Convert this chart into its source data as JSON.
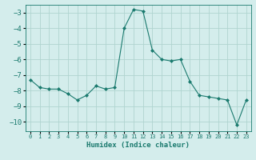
{
  "x": [
    0,
    1,
    2,
    3,
    4,
    5,
    6,
    7,
    8,
    9,
    10,
    11,
    12,
    13,
    14,
    15,
    16,
    17,
    18,
    19,
    20,
    21,
    22,
    23
  ],
  "y": [
    -7.3,
    -7.8,
    -7.9,
    -7.9,
    -8.2,
    -8.6,
    -8.3,
    -7.7,
    -7.9,
    -7.8,
    -4.0,
    -2.8,
    -2.9,
    -5.4,
    -6.0,
    -6.1,
    -6.0,
    -7.4,
    -8.3,
    -8.4,
    -8.5,
    -8.6,
    -10.2,
    -8.6
  ],
  "line_color": "#1a7a6e",
  "marker": "D",
  "marker_size": 2.0,
  "bg_color": "#d4edec",
  "grid_color": "#b0d4d0",
  "xlabel": "Humidex (Indice chaleur)",
  "ylim": [
    -10.6,
    -2.5
  ],
  "xlim": [
    -0.5,
    23.5
  ],
  "yticks": [
    -3,
    -4,
    -5,
    -6,
    -7,
    -8,
    -9,
    -10
  ],
  "xtick_labels": [
    "0",
    "1",
    "2",
    "3",
    "4",
    "5",
    "6",
    "7",
    "8",
    "9",
    "10",
    "11",
    "12",
    "13",
    "14",
    "15",
    "16",
    "17",
    "18",
    "19",
    "20",
    "21",
    "22",
    "23"
  ],
  "xlabel_fontsize": 6.5,
  "ytick_fontsize": 6.5,
  "xtick_fontsize": 5.0,
  "linewidth": 0.8
}
